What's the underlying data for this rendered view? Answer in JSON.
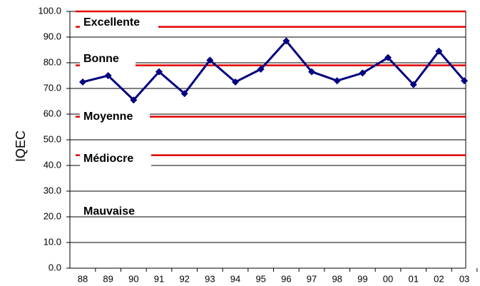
{
  "chart_data": {
    "type": "line",
    "y_label": "IQEC",
    "categories": [
      "88",
      "89",
      "90",
      "91",
      "92",
      "93",
      "94",
      "95",
      "96",
      "97",
      "98",
      "99",
      "00",
      "01",
      "02",
      "03"
    ],
    "series": [
      {
        "color": "#000080",
        "values": [
          72.5,
          75,
          65.5,
          76.5,
          68,
          81,
          72.5,
          77.5,
          88.5,
          76.5,
          73,
          76,
          82,
          71.5,
          84.5,
          73
        ]
      }
    ],
    "ylim": [
      0,
      100
    ],
    "yticks": [
      {
        "value": 0,
        "label": "0.0"
      },
      {
        "value": 10,
        "label": "10.0"
      },
      {
        "value": 20,
        "label": "20.0"
      },
      {
        "value": 30,
        "label": "30.0"
      },
      {
        "value": 40,
        "label": "40.0"
      },
      {
        "value": 50,
        "label": "50.0"
      },
      {
        "value": 60,
        "label": "60.0"
      },
      {
        "value": 70,
        "label": "70.0"
      },
      {
        "value": 80,
        "label": "80.0"
      },
      {
        "value": 90,
        "label": "90.0"
      },
      {
        "value": 100,
        "label": "100.0"
      }
    ],
    "grid": true,
    "thresholds": [
      100,
      94,
      79,
      59,
      44
    ],
    "threshold_color": "#e00000",
    "zones": [
      "Excellente",
      "Bonne",
      "Moyenne",
      "Médiocre",
      "Mauvaise"
    ]
  }
}
